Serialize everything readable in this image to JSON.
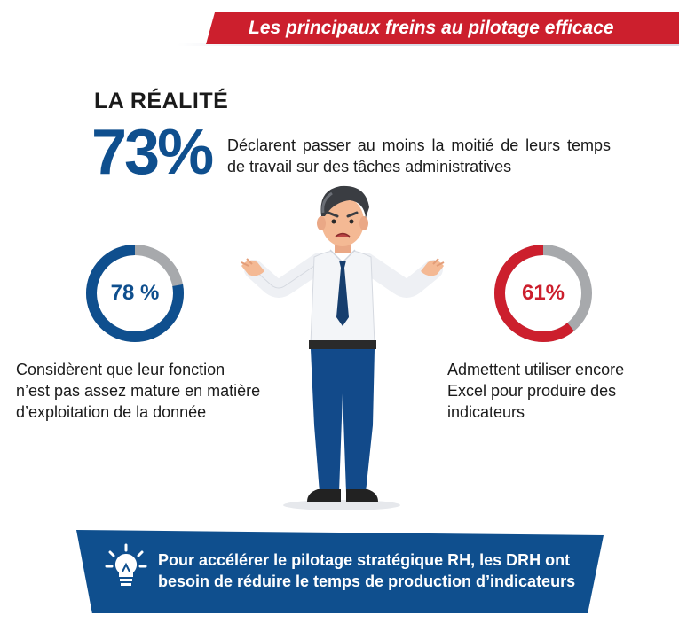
{
  "header": {
    "title": "Les principaux freins au pilotage efficace"
  },
  "reality": {
    "title": "LA RÉALITÉ",
    "main_percent": "73%",
    "main_description": "Déclarent passer au moins la moitié de leurs temps de travail sur des tâches administratives"
  },
  "stats": [
    {
      "percent_label": "78 %",
      "value": 78,
      "color": "#0f4f8e",
      "description_lines": [
        "Considèrent que leur fonction",
        "n’est pas assez mature en matière",
        "d’exploitation de la donnée"
      ]
    },
    {
      "percent_label": "61%",
      "value": 61,
      "color": "#cc1f2d",
      "description_lines": [
        "Admettent utiliser encore",
        "Excel pour produire des",
        "indicateurs"
      ]
    }
  ],
  "banner": {
    "line1": "Pour accélérer le pilotage stratégique RH, les DRH ont",
    "line2": "besoin de réduire le temps de production d’indicateurs",
    "icon": "lightbulb-icon"
  },
  "colors": {
    "brand_blue": "#0f4f8e",
    "brand_red": "#cc1f2d",
    "track_grey": "#a7a9ac"
  }
}
